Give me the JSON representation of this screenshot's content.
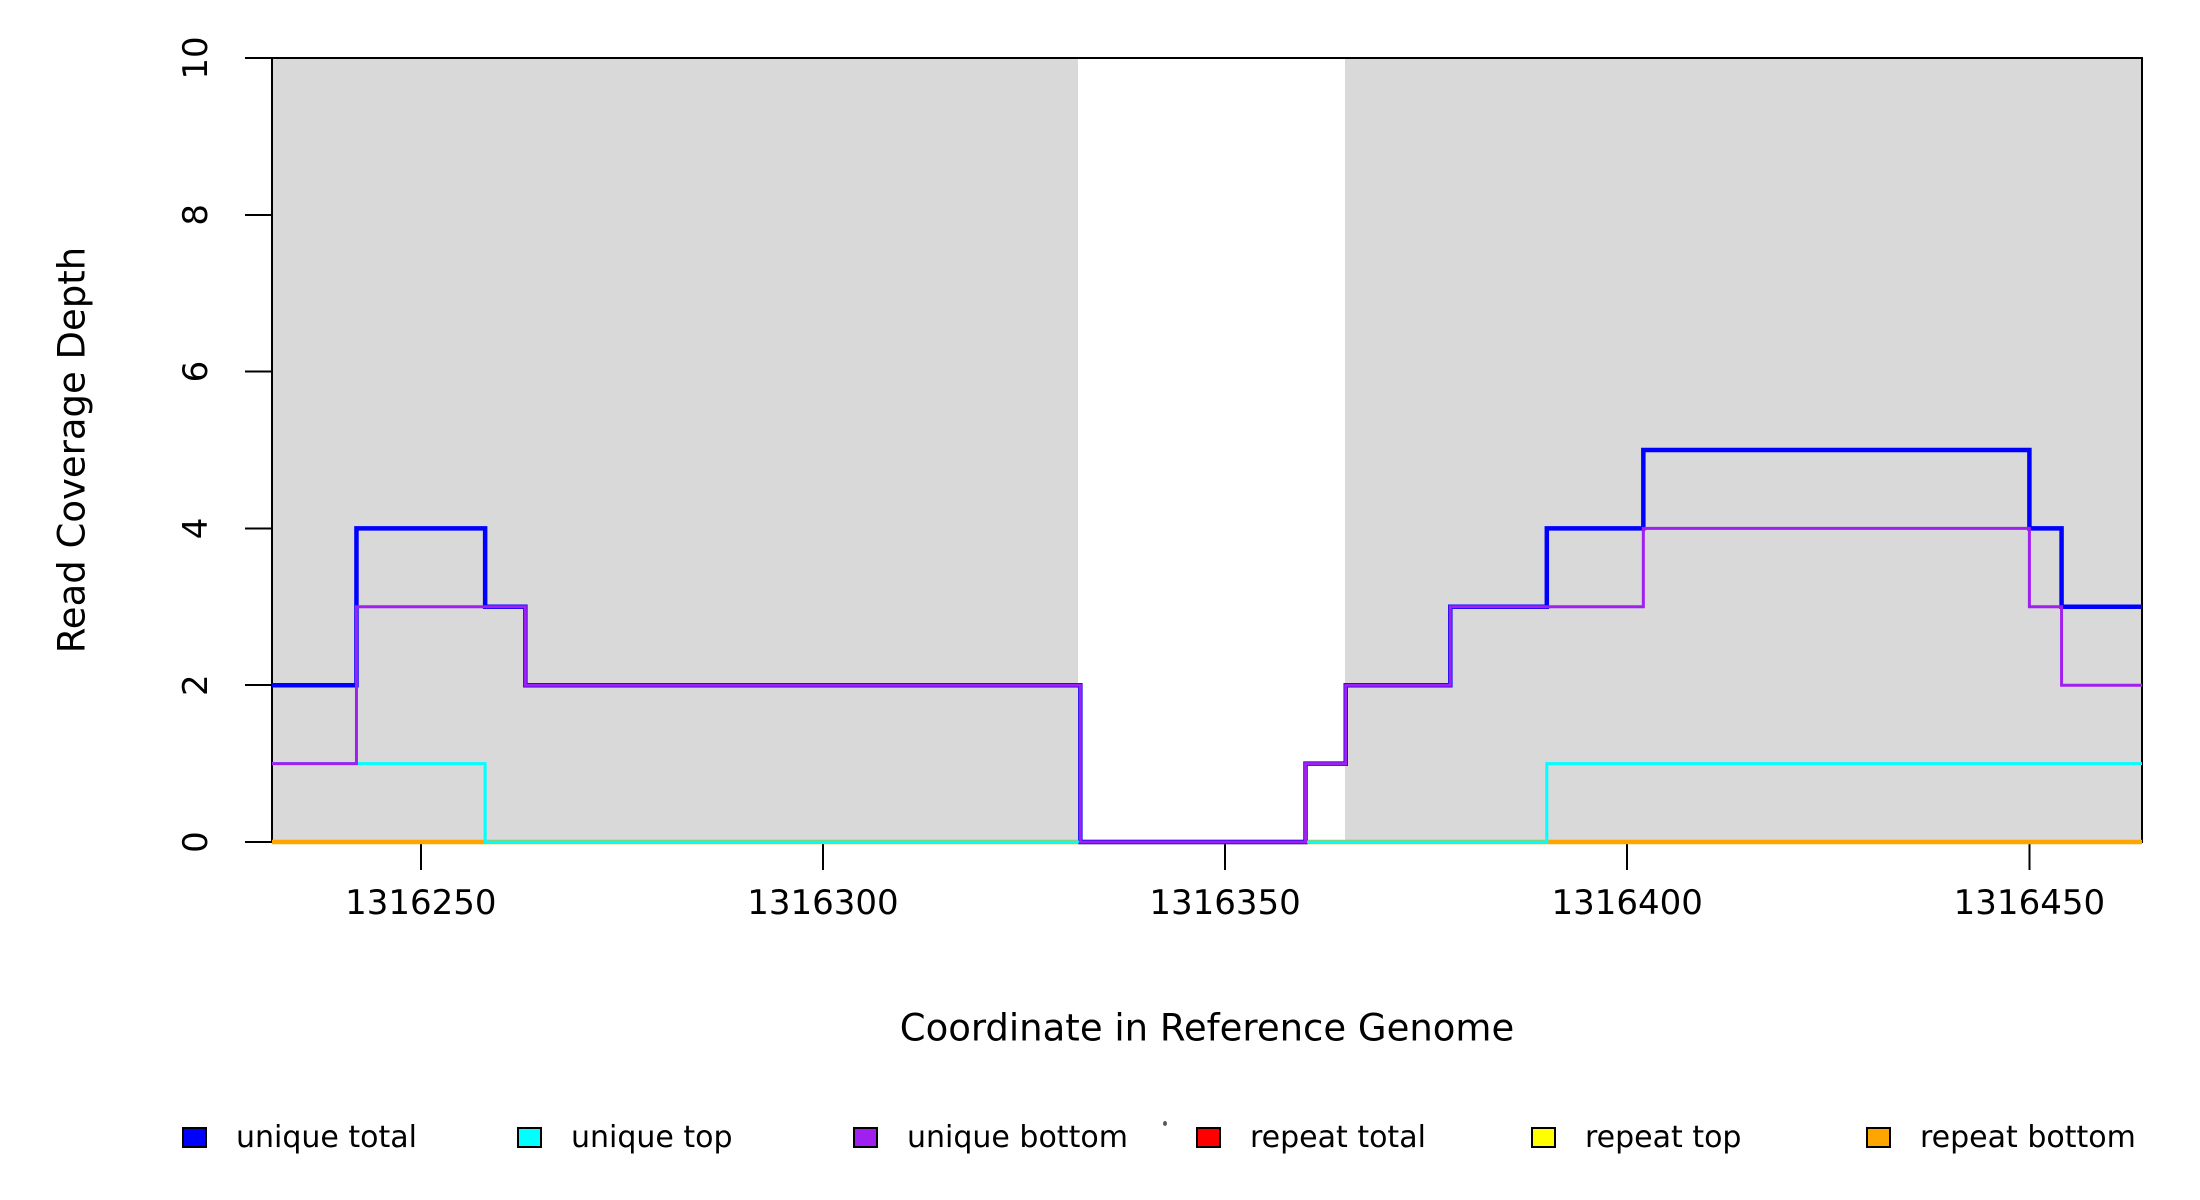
{
  "figure": {
    "background_color": "#FFFFFF",
    "shaded_region_color": "#D9D9D9",
    "axis_color": "#000000"
  },
  "chart_data": {
    "type": "line",
    "subtype": "step-coverage-plot",
    "title": "",
    "xlabel": "Coordinate in Reference Genome",
    "ylabel": "Read Coverage Depth",
    "xlim": [
      1316231.5,
      1316464
    ],
    "ylim": [
      0,
      10
    ],
    "x_tick_values": [
      1316250,
      1316300,
      1316350,
      1316400,
      1316450
    ],
    "x_tick_labels": [
      "1316250",
      "1316300",
      "1316350",
      "1316400",
      "1316450"
    ],
    "y_tick_values": [
      0,
      2,
      4,
      6,
      8,
      10
    ],
    "y_tick_labels": [
      "0",
      "2",
      "4",
      "6",
      "8",
      "10"
    ],
    "grid": false,
    "legend_position": "bottom",
    "shaded_regions": [
      {
        "x_start": 1316231.5,
        "x_end": 1316331.7,
        "color": "#D9D9D9"
      },
      {
        "x_start": 1316364.9,
        "x_end": 1316464,
        "color": "#D9D9D9"
      }
    ],
    "series": [
      {
        "name": "repeat total",
        "color": "#FF0000",
        "line_width": 3,
        "steps": [
          [
            1316231.5,
            0
          ],
          [
            1316464,
            0
          ]
        ]
      },
      {
        "name": "repeat top",
        "color": "#FFFF00",
        "line_width": 3,
        "steps": [
          [
            1316231.5,
            0
          ],
          [
            1316464,
            0
          ]
        ]
      },
      {
        "name": "repeat bottom",
        "color": "#FFA500",
        "line_width": 4.5,
        "steps": [
          [
            1316231.5,
            0
          ],
          [
            1316464,
            0
          ]
        ]
      },
      {
        "name": "unique total",
        "color": "#0000FF",
        "line_width": 4.5,
        "steps": [
          [
            1316231.5,
            2
          ],
          [
            1316242,
            4
          ],
          [
            1316258,
            3
          ],
          [
            1316263,
            2
          ],
          [
            1316332,
            0
          ],
          [
            1316360,
            1
          ],
          [
            1316365,
            2
          ],
          [
            1316378,
            3
          ],
          [
            1316390,
            4
          ],
          [
            1316402,
            5
          ],
          [
            1316450,
            4
          ],
          [
            1316454,
            3
          ],
          [
            1316464,
            3
          ]
        ]
      },
      {
        "name": "unique top",
        "color": "#00FFFF",
        "line_width": 3,
        "steps": [
          [
            1316231.5,
            1
          ],
          [
            1316258,
            0
          ],
          [
            1316390,
            1
          ],
          [
            1316464,
            1
          ]
        ]
      },
      {
        "name": "unique bottom",
        "color": "#A020F0",
        "line_width": 3,
        "steps": [
          [
            1316231.5,
            1
          ],
          [
            1316242,
            3
          ],
          [
            1316263,
            2
          ],
          [
            1316332,
            0
          ],
          [
            1316360,
            1
          ],
          [
            1316365,
            2
          ],
          [
            1316378,
            3
          ],
          [
            1316402,
            4
          ],
          [
            1316450,
            3
          ],
          [
            1316454,
            2
          ],
          [
            1316464,
            2
          ]
        ]
      }
    ],
    "legend": [
      {
        "label": "unique total",
        "color": "#0000FF"
      },
      {
        "label": "unique top",
        "color": "#00FFFF"
      },
      {
        "label": "unique bottom",
        "color": "#A020F0"
      },
      {
        "label": "repeat total",
        "color": "#FF0000"
      },
      {
        "label": "repeat top",
        "color": "#FFFF00"
      },
      {
        "label": "repeat bottom",
        "color": "#FFA500"
      }
    ]
  }
}
